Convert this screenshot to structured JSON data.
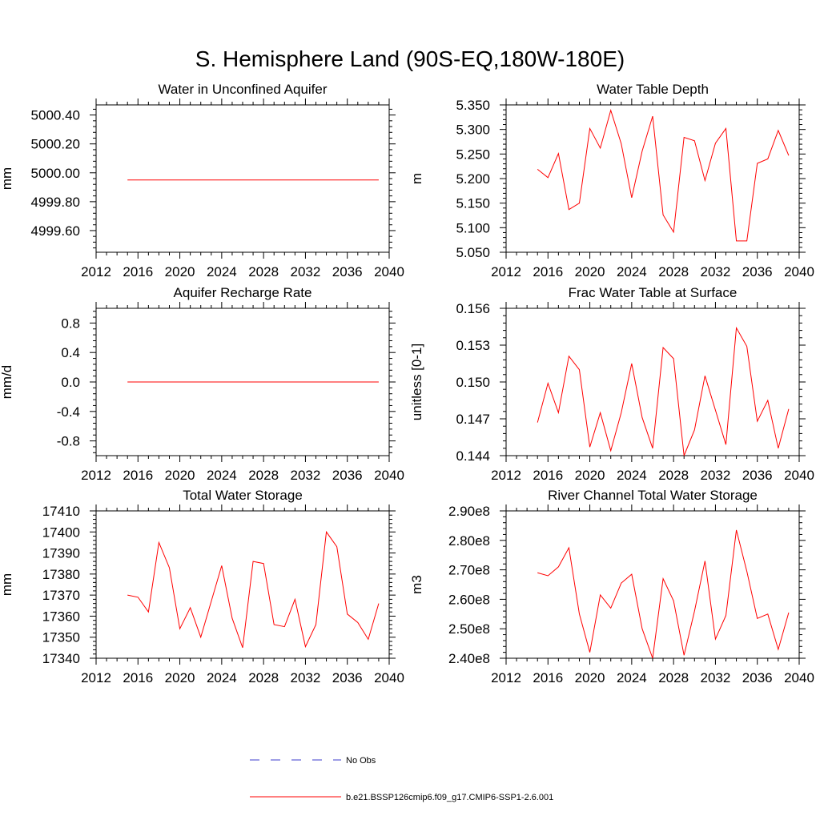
{
  "figure_title": "S. Hemisphere Land (90S-EQ,180W-180E)",
  "legend": {
    "items": [
      {
        "label": "No Obs",
        "style": "dashed",
        "color": "#3b3bcc"
      },
      {
        "label": "b.e21.BSSP126cmip6.f09_g17.CMIP6-SSP1-2.6.001",
        "style": "solid",
        "color": "#ff0000"
      }
    ]
  },
  "chart_data": [
    {
      "type": "line",
      "title": "Water in Unconfined Aquifer",
      "xlabel": "",
      "ylabel": "mm",
      "xlim": [
        2012,
        2040
      ],
      "ylim": [
        4999.45,
        5000.47
      ],
      "xticks": [
        2012,
        2016,
        2020,
        2024,
        2028,
        2032,
        2036,
        2040
      ],
      "yticks": [
        4999.6,
        4999.8,
        5000.0,
        5000.2,
        5000.4
      ],
      "ytick_labels": [
        "4999.60",
        "4999.80",
        "5000.00",
        "5000.20",
        "5000.40"
      ],
      "series": [
        {
          "name": "b.e21.BSSP126cmip6.f09_g17.CMIP6-SSP1-2.6.001",
          "color": "#ff0000",
          "x": [
            2015,
            2016,
            2017,
            2018,
            2019,
            2020,
            2021,
            2022,
            2023,
            2024,
            2025,
            2026,
            2027,
            2028,
            2029,
            2030,
            2031,
            2032,
            2033,
            2034,
            2035,
            2036,
            2037,
            2038,
            2039
          ],
          "values": [
            4999.95,
            4999.95,
            4999.95,
            4999.95,
            4999.95,
            4999.95,
            4999.95,
            4999.95,
            4999.95,
            4999.95,
            4999.95,
            4999.95,
            4999.95,
            4999.95,
            4999.95,
            4999.95,
            4999.95,
            4999.95,
            4999.95,
            4999.95,
            4999.95,
            4999.95,
            4999.95,
            4999.95,
            4999.95
          ]
        }
      ]
    },
    {
      "type": "line",
      "title": "Water Table Depth",
      "xlabel": "",
      "ylabel": "m",
      "xlim": [
        2012,
        2040
      ],
      "ylim": [
        5.05,
        5.35
      ],
      "xticks": [
        2012,
        2016,
        2020,
        2024,
        2028,
        2032,
        2036,
        2040
      ],
      "yticks": [
        5.05,
        5.1,
        5.15,
        5.2,
        5.25,
        5.3,
        5.35
      ],
      "ytick_labels": [
        "5.050",
        "5.100",
        "5.150",
        "5.200",
        "5.250",
        "5.300",
        "5.350"
      ],
      "series": [
        {
          "name": "b.e21.BSSP126cmip6.f09_g17.CMIP6-SSP1-2.6.001",
          "color": "#ff0000",
          "x": [
            2015,
            2016,
            2017,
            2018,
            2019,
            2020,
            2021,
            2022,
            2023,
            2024,
            2025,
            2026,
            2027,
            2028,
            2029,
            2030,
            2031,
            2032,
            2033,
            2034,
            2035,
            2036,
            2037,
            2038,
            2039
          ],
          "values": [
            5.219,
            5.202,
            5.251,
            5.137,
            5.15,
            5.302,
            5.262,
            5.339,
            5.271,
            5.161,
            5.256,
            5.327,
            5.126,
            5.091,
            5.284,
            5.277,
            5.196,
            5.272,
            5.302,
            5.073,
            5.073,
            5.231,
            5.24,
            5.298,
            5.247
          ]
        }
      ]
    },
    {
      "type": "line",
      "title": "Aquifer Recharge Rate",
      "xlabel": "",
      "ylabel": "mm/d",
      "xlim": [
        2012,
        2040
      ],
      "ylim": [
        -1.0,
        1.0
      ],
      "xticks": [
        2012,
        2016,
        2020,
        2024,
        2028,
        2032,
        2036,
        2040
      ],
      "yticks": [
        -0.8,
        -0.4,
        0.0,
        0.4,
        0.8
      ],
      "ytick_labels": [
        "-0.8",
        "-0.4",
        "0.0",
        "0.4",
        "0.8"
      ],
      "series": [
        {
          "name": "b.e21.BSSP126cmip6.f09_g17.CMIP6-SSP1-2.6.001",
          "color": "#ff0000",
          "x": [
            2015,
            2016,
            2017,
            2018,
            2019,
            2020,
            2021,
            2022,
            2023,
            2024,
            2025,
            2026,
            2027,
            2028,
            2029,
            2030,
            2031,
            2032,
            2033,
            2034,
            2035,
            2036,
            2037,
            2038,
            2039
          ],
          "values": [
            0,
            0,
            0,
            0,
            0,
            0,
            0,
            0,
            0,
            0,
            0,
            0,
            0,
            0,
            0,
            0,
            0,
            0,
            0,
            0,
            0,
            0,
            0,
            0,
            0
          ]
        }
      ]
    },
    {
      "type": "line",
      "title": "Frac Water Table at Surface",
      "xlabel": "",
      "ylabel": "unitless [0-1]",
      "xlim": [
        2012,
        2040
      ],
      "ylim": [
        0.144,
        0.156
      ],
      "xticks": [
        2012,
        2016,
        2020,
        2024,
        2028,
        2032,
        2036,
        2040
      ],
      "yticks": [
        0.144,
        0.147,
        0.15,
        0.153,
        0.156
      ],
      "ytick_labels": [
        "0.144",
        "0.147",
        "0.150",
        "0.153",
        "0.156"
      ],
      "series": [
        {
          "name": "b.e21.BSSP126cmip6.f09_g17.CMIP6-SSP1-2.6.001",
          "color": "#ff0000",
          "x": [
            2015,
            2016,
            2017,
            2018,
            2019,
            2020,
            2021,
            2022,
            2023,
            2024,
            2025,
            2026,
            2027,
            2028,
            2029,
            2030,
            2031,
            2032,
            2033,
            2034,
            2035,
            2036,
            2037,
            2038,
            2039
          ],
          "values": [
            0.1467,
            0.1499,
            0.1475,
            0.1521,
            0.151,
            0.1447,
            0.1475,
            0.1444,
            0.1475,
            0.1515,
            0.1471,
            0.1446,
            0.1528,
            0.1519,
            0.144,
            0.1461,
            0.1505,
            0.1477,
            0.1449,
            0.1544,
            0.1529,
            0.1468,
            0.1485,
            0.1446,
            0.1478
          ]
        }
      ]
    },
    {
      "type": "line",
      "title": "Total Water Storage",
      "xlabel": "",
      "ylabel": "mm",
      "xlim": [
        2012,
        2040
      ],
      "ylim": [
        17340,
        17410
      ],
      "xticks": [
        2012,
        2016,
        2020,
        2024,
        2028,
        2032,
        2036,
        2040
      ],
      "yticks": [
        17340,
        17350,
        17360,
        17370,
        17380,
        17390,
        17400,
        17410
      ],
      "ytick_labels": [
        "17340",
        "17350",
        "17360",
        "17370",
        "17380",
        "17390",
        "17400",
        "17410"
      ],
      "series": [
        {
          "name": "b.e21.BSSP126cmip6.f09_g17.CMIP6-SSP1-2.6.001",
          "color": "#ff0000",
          "x": [
            2015,
            2016,
            2017,
            2018,
            2019,
            2020,
            2021,
            2022,
            2023,
            2024,
            2025,
            2026,
            2027,
            2028,
            2029,
            2030,
            2031,
            2032,
            2033,
            2034,
            2035,
            2036,
            2037,
            2038,
            2039
          ],
          "values": [
            17370,
            17369,
            17362,
            17395,
            17383,
            17354,
            17364,
            17350,
            17367,
            17384,
            17359,
            17345,
            17386,
            17385,
            17356,
            17355,
            17368,
            17345.5,
            17356,
            17400,
            17393,
            17361,
            17357,
            17349,
            17366
          ]
        }
      ]
    },
    {
      "type": "line",
      "title": "River Channel Total Water Storage",
      "xlabel": "",
      "ylabel": "m3",
      "xlim": [
        2012,
        2040
      ],
      "ylim": [
        240000000.0,
        290000000.0
      ],
      "xticks": [
        2012,
        2016,
        2020,
        2024,
        2028,
        2032,
        2036,
        2040
      ],
      "yticks": [
        240000000.0,
        250000000.0,
        260000000.0,
        270000000.0,
        280000000.0,
        290000000.0
      ],
      "ytick_labels": [
        "2.40e8",
        "2.50e8",
        "2.60e8",
        "2.70e8",
        "2.80e8",
        "2.90e8"
      ],
      "series": [
        {
          "name": "b.e21.BSSP126cmip6.f09_g17.CMIP6-SSP1-2.6.001",
          "color": "#ff0000",
          "x": [
            2015,
            2016,
            2017,
            2018,
            2019,
            2020,
            2021,
            2022,
            2023,
            2024,
            2025,
            2026,
            2027,
            2028,
            2029,
            2030,
            2031,
            2032,
            2033,
            2034,
            2035,
            2036,
            2037,
            2038,
            2039
          ],
          "values": [
            269000000.0,
            268000000.0,
            271000000.0,
            277500000.0,
            255000000.0,
            242000000.0,
            261500000.0,
            257000000.0,
            265500000.0,
            268500000.0,
            250000000.0,
            240000000.0,
            267000000.0,
            259500000.0,
            241000000.0,
            256000000.0,
            273000000.0,
            246500000.0,
            254500000.0,
            283500000.0,
            269500000.0,
            253500000.0,
            255000000.0,
            243000000.0,
            255500000.0
          ]
        }
      ]
    }
  ]
}
